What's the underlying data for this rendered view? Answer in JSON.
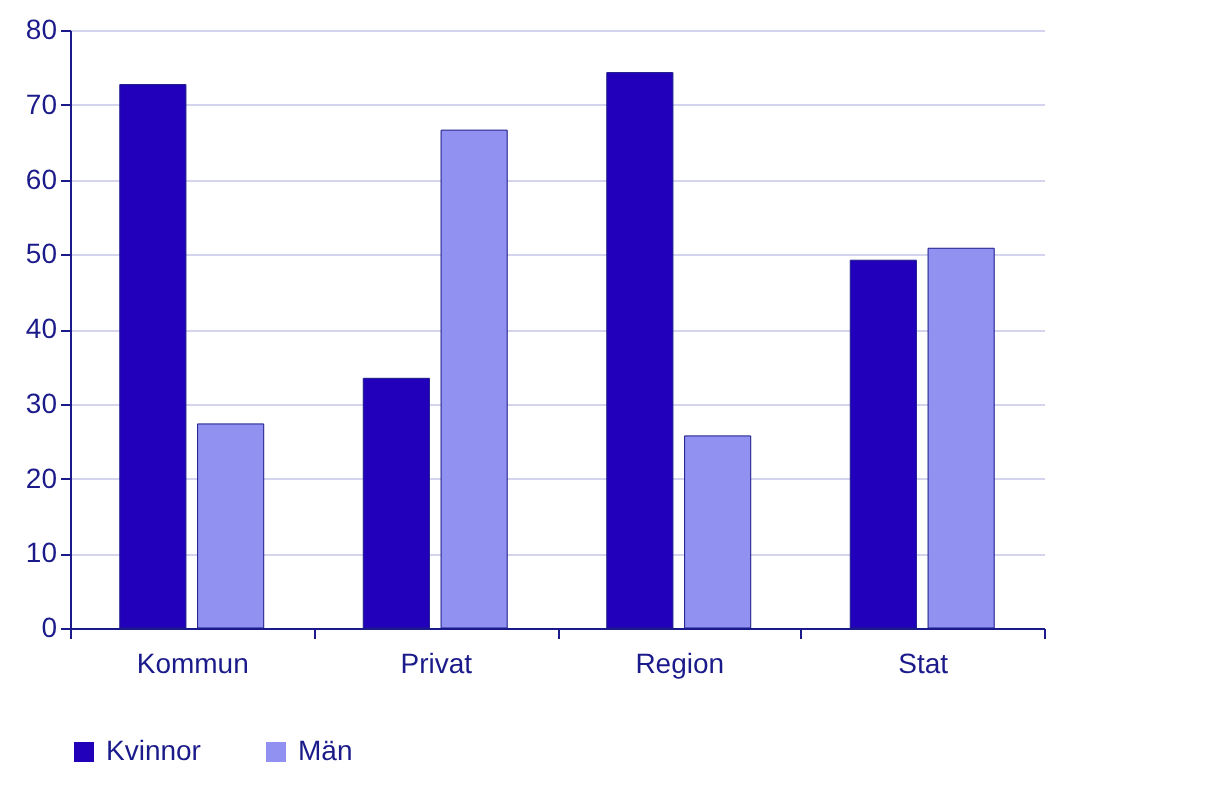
{
  "chart_data": {
    "type": "bar",
    "categories": [
      "Kommun",
      "Privat",
      "Region",
      "Stat"
    ],
    "series": [
      {
        "name": "Kvinnor",
        "color": "#2200bb",
        "values": [
          72.7,
          33.4,
          74.3,
          49.2
        ]
      },
      {
        "name": "Män",
        "color": "#9191f2",
        "values": [
          27.3,
          66.6,
          25.7,
          50.8
        ]
      }
    ],
    "ylim": [
      0,
      80
    ],
    "yticks": [
      0,
      10,
      20,
      30,
      40,
      50,
      60,
      70,
      80
    ],
    "grid": "y",
    "legend": "bottom"
  }
}
